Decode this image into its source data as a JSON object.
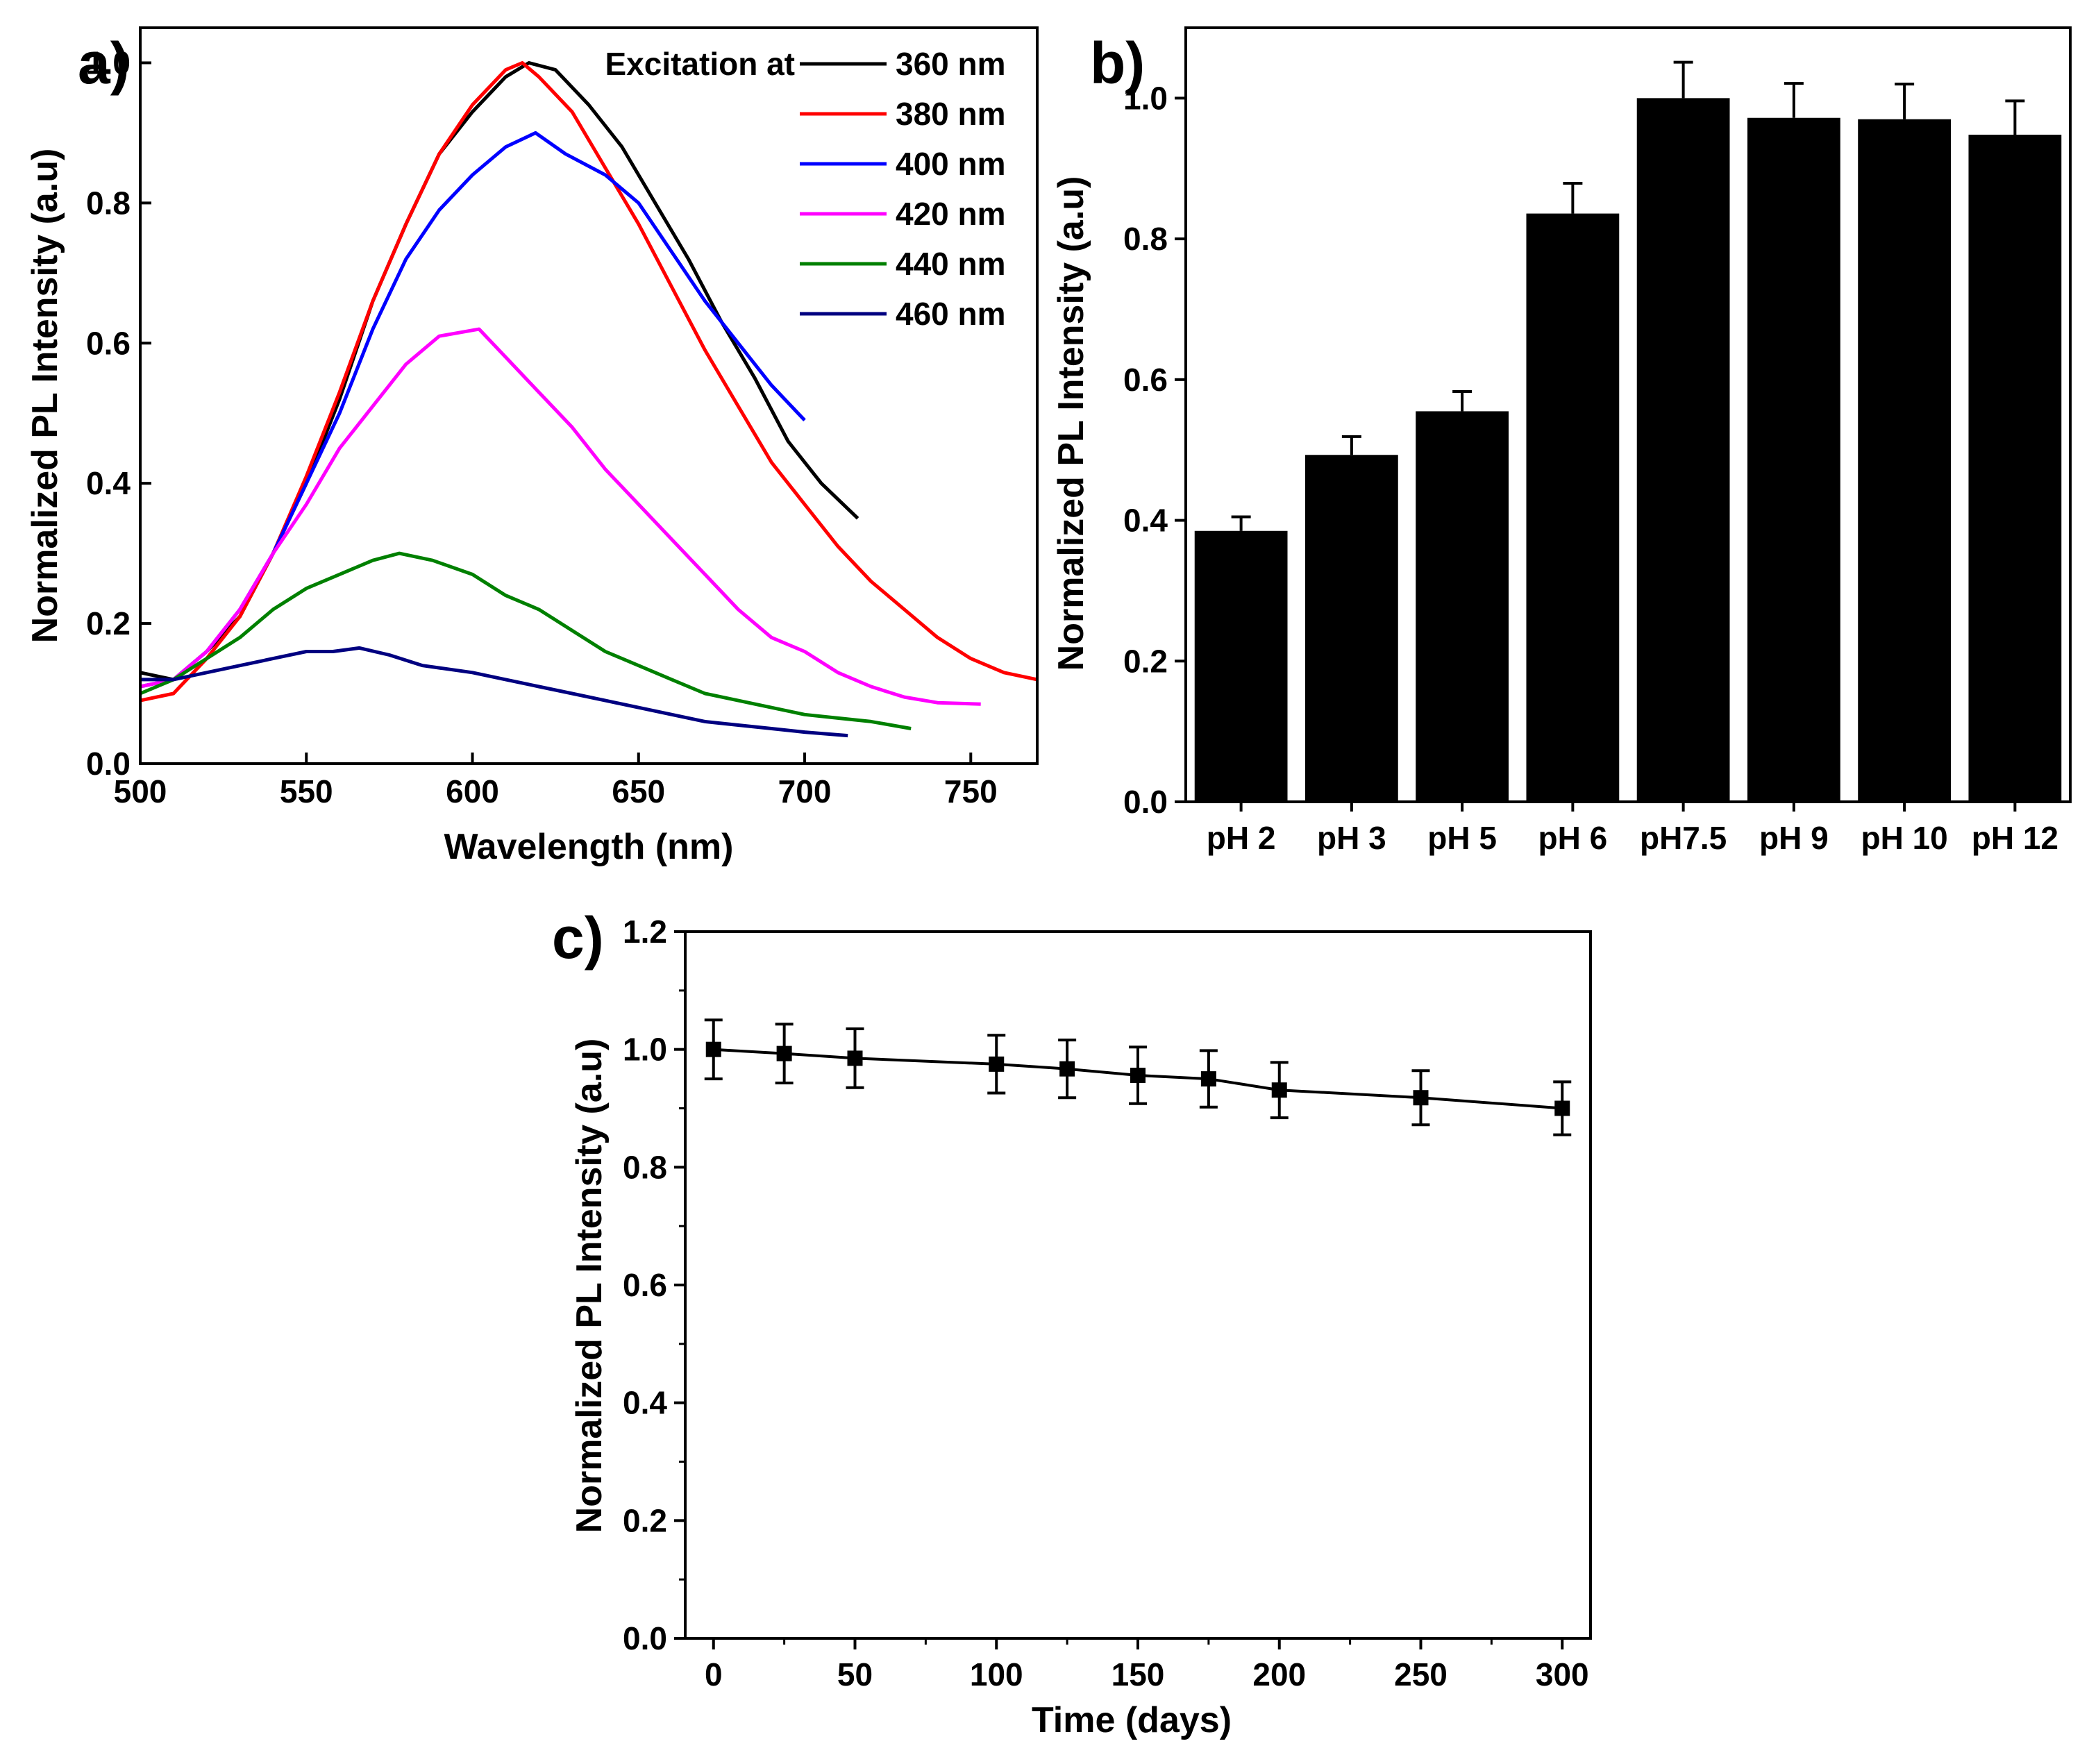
{
  "figure": {
    "panels": [
      "a)",
      "b)",
      "c)"
    ]
  },
  "chart_data": [
    {
      "id": "a",
      "type": "line",
      "panel_label": "a)",
      "xlabel": "Wavelength (nm)",
      "ylabel": "Normalized PL Intensity (a.u)",
      "xlim": [
        500,
        770
      ],
      "ylim": [
        0,
        1.05
      ],
      "xticks": [
        500,
        550,
        600,
        650,
        700,
        750
      ],
      "yticks": [
        "0.0",
        "0.2",
        "0.4",
        "0.6",
        "0.8",
        "1.0"
      ],
      "legend_title": "Excitation at",
      "legend_position": "top-right",
      "series": [
        {
          "name": "360 nm",
          "color": "#000000",
          "points": [
            [
              500,
              0.13
            ],
            [
              510,
              0.12
            ],
            [
              520,
              0.16
            ],
            [
              530,
              0.21
            ],
            [
              540,
              0.3
            ],
            [
              550,
              0.4
            ],
            [
              560,
              0.52
            ],
            [
              570,
              0.66
            ],
            [
              580,
              0.77
            ],
            [
              590,
              0.87
            ],
            [
              600,
              0.93
            ],
            [
              610,
              0.98
            ],
            [
              617,
              1.0
            ],
            [
              625,
              0.99
            ],
            [
              635,
              0.94
            ],
            [
              645,
              0.88
            ],
            [
              655,
              0.8
            ],
            [
              665,
              0.72
            ],
            [
              675,
              0.63
            ],
            [
              685,
              0.55
            ],
            [
              695,
              0.46
            ],
            [
              705,
              0.4
            ],
            [
              716,
              0.35
            ]
          ]
        },
        {
          "name": "380 nm",
          "color": "#ff0000",
          "points": [
            [
              500,
              0.09
            ],
            [
              510,
              0.1
            ],
            [
              520,
              0.15
            ],
            [
              530,
              0.21
            ],
            [
              540,
              0.3
            ],
            [
              550,
              0.41
            ],
            [
              560,
              0.53
            ],
            [
              570,
              0.66
            ],
            [
              580,
              0.77
            ],
            [
              590,
              0.87
            ],
            [
              600,
              0.94
            ],
            [
              610,
              0.99
            ],
            [
              615,
              1.0
            ],
            [
              620,
              0.98
            ],
            [
              630,
              0.93
            ],
            [
              640,
              0.85
            ],
            [
              650,
              0.77
            ],
            [
              660,
              0.68
            ],
            [
              670,
              0.59
            ],
            [
              680,
              0.51
            ],
            [
              690,
              0.43
            ],
            [
              700,
              0.37
            ],
            [
              710,
              0.31
            ],
            [
              720,
              0.26
            ],
            [
              730,
              0.22
            ],
            [
              740,
              0.18
            ],
            [
              750,
              0.15
            ],
            [
              760,
              0.13
            ],
            [
              770,
              0.12
            ]
          ]
        },
        {
          "name": "400 nm",
          "color": "#0000ff",
          "points": [
            [
              500,
              0.11
            ],
            [
              510,
              0.12
            ],
            [
              520,
              0.16
            ],
            [
              530,
              0.22
            ],
            [
              540,
              0.3
            ],
            [
              550,
              0.4
            ],
            [
              560,
              0.5
            ],
            [
              570,
              0.62
            ],
            [
              580,
              0.72
            ],
            [
              590,
              0.79
            ],
            [
              600,
              0.84
            ],
            [
              610,
              0.88
            ],
            [
              619,
              0.9
            ],
            [
              628,
              0.87
            ],
            [
              640,
              0.84
            ],
            [
              650,
              0.8
            ],
            [
              660,
              0.73
            ],
            [
              670,
              0.66
            ],
            [
              680,
              0.6
            ],
            [
              690,
              0.54
            ],
            [
              700,
              0.49
            ]
          ]
        },
        {
          "name": "420 nm",
          "color": "#ff00ff",
          "points": [
            [
              500,
              0.11
            ],
            [
              510,
              0.12
            ],
            [
              520,
              0.16
            ],
            [
              530,
              0.22
            ],
            [
              540,
              0.3
            ],
            [
              550,
              0.37
            ],
            [
              560,
              0.45
            ],
            [
              570,
              0.51
            ],
            [
              580,
              0.57
            ],
            [
              590,
              0.61
            ],
            [
              602,
              0.62
            ],
            [
              610,
              0.58
            ],
            [
              620,
              0.53
            ],
            [
              630,
              0.48
            ],
            [
              640,
              0.42
            ],
            [
              650,
              0.37
            ],
            [
              660,
              0.32
            ],
            [
              670,
              0.27
            ],
            [
              680,
              0.22
            ],
            [
              690,
              0.18
            ],
            [
              700,
              0.16
            ],
            [
              710,
              0.13
            ],
            [
              720,
              0.11
            ],
            [
              730,
              0.095
            ],
            [
              740,
              0.087
            ],
            [
              753,
              0.085
            ]
          ]
        },
        {
          "name": "440 nm",
          "color": "#008000",
          "points": [
            [
              500,
              0.1
            ],
            [
              510,
              0.12
            ],
            [
              520,
              0.15
            ],
            [
              530,
              0.18
            ],
            [
              540,
              0.22
            ],
            [
              550,
              0.25
            ],
            [
              560,
              0.27
            ],
            [
              570,
              0.29
            ],
            [
              578,
              0.3
            ],
            [
              588,
              0.29
            ],
            [
              600,
              0.27
            ],
            [
              610,
              0.24
            ],
            [
              620,
              0.22
            ],
            [
              630,
              0.19
            ],
            [
              640,
              0.16
            ],
            [
              650,
              0.14
            ],
            [
              660,
              0.12
            ],
            [
              670,
              0.1
            ],
            [
              680,
              0.09
            ],
            [
              690,
              0.08
            ],
            [
              700,
              0.07
            ],
            [
              710,
              0.065
            ],
            [
              720,
              0.06
            ],
            [
              732,
              0.05
            ]
          ]
        },
        {
          "name": "460 nm",
          "color": "#000080",
          "points": [
            [
              500,
              0.12
            ],
            [
              510,
              0.12
            ],
            [
              520,
              0.13
            ],
            [
              530,
              0.14
            ],
            [
              540,
              0.15
            ],
            [
              550,
              0.16
            ],
            [
              558,
              0.16
            ],
            [
              566,
              0.165
            ],
            [
              575,
              0.155
            ],
            [
              585,
              0.14
            ],
            [
              600,
              0.13
            ],
            [
              610,
              0.12
            ],
            [
              620,
              0.11
            ],
            [
              630,
              0.1
            ],
            [
              640,
              0.09
            ],
            [
              650,
              0.08
            ],
            [
              660,
              0.07
            ],
            [
              670,
              0.06
            ],
            [
              680,
              0.055
            ],
            [
              690,
              0.05
            ],
            [
              700,
              0.045
            ],
            [
              713,
              0.04
            ]
          ]
        }
      ]
    },
    {
      "id": "b",
      "type": "bar",
      "panel_label": "b)",
      "xlabel": "",
      "ylabel": "Normalized PL Intensity (a.u)",
      "ylim": [
        0,
        1.1
      ],
      "yticks": [
        "0.0",
        "0.2",
        "0.4",
        "0.6",
        "0.8",
        "1.0"
      ],
      "categories": [
        "pH 2",
        "pH 3",
        "pH 5",
        "pH 6",
        "pH7.5",
        "pH 9",
        "pH 10",
        "pH 12"
      ],
      "values": [
        0.385,
        0.493,
        0.555,
        0.836,
        1.0,
        0.972,
        0.97,
        0.948
      ],
      "errors": [
        0.02,
        0.026,
        0.028,
        0.043,
        0.051,
        0.049,
        0.05,
        0.048
      ],
      "bar_color": "#000000"
    },
    {
      "id": "c",
      "type": "line",
      "panel_label": "c)",
      "xlabel": "Time (days)",
      "ylabel": "Normalized PL Intensity (a.u)",
      "xlim": [
        -10,
        310
      ],
      "ylim": [
        0,
        1.2
      ],
      "xticks": [
        0,
        50,
        100,
        150,
        200,
        250,
        300
      ],
      "yticks": [
        "0.0",
        "0.2",
        "0.4",
        "0.6",
        "0.8",
        "1.0",
        "1.2"
      ],
      "x": [
        0,
        25,
        50,
        100,
        125,
        150,
        175,
        200,
        250,
        300
      ],
      "y": [
        1.0,
        0.993,
        0.985,
        0.975,
        0.967,
        0.956,
        0.95,
        0.931,
        0.918,
        0.9
      ],
      "errors": [
        0.05,
        0.05,
        0.05,
        0.049,
        0.049,
        0.048,
        0.048,
        0.047,
        0.046,
        0.045
      ],
      "marker": "square",
      "color": "#000000"
    }
  ]
}
